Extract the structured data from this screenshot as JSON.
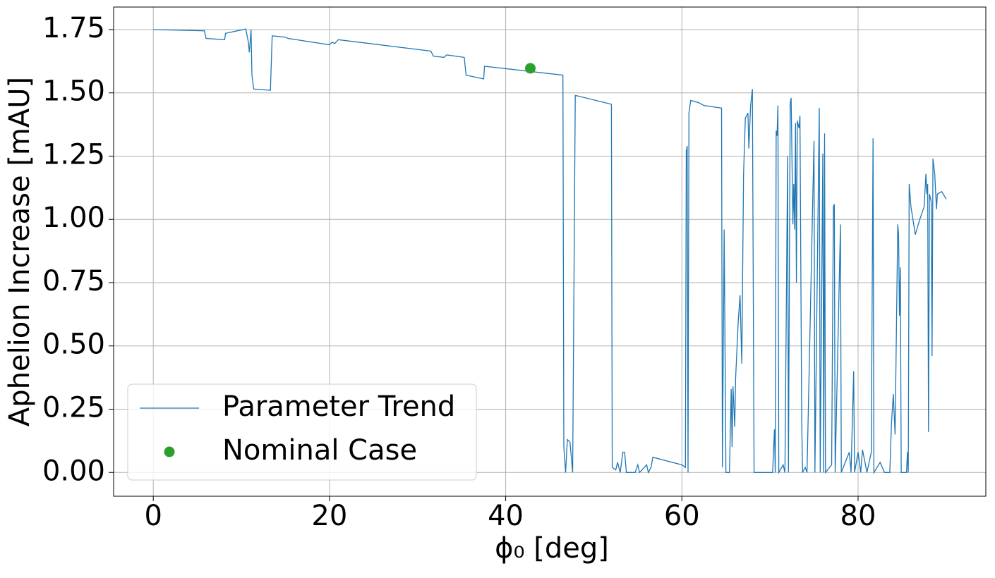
{
  "chart_data": {
    "type": "line",
    "xlabel": "ϕ₀ [deg]",
    "ylabel": "Aphelion Increase [mAU]",
    "xlim": [
      -4.5,
      94.5
    ],
    "ylim": [
      -0.094,
      1.839
    ],
    "xticks": [
      0,
      20,
      40,
      60,
      80
    ],
    "yticks": [
      {
        "value": 0,
        "label": "0.00"
      },
      0.25,
      {
        "value": 0.5,
        "label": "0.50"
      },
      0.75,
      {
        "value": 1,
        "label": "1.00"
      },
      1.25,
      {
        "value": 1.5,
        "label": "1.50"
      },
      1.75
    ],
    "grid": true,
    "legend": "lower left",
    "series": [
      {
        "name": "Parameter Trend",
        "color": "#1f77b4",
        "style": "line",
        "x": [
          0,
          5.8,
          6,
          8.1,
          8.2,
          10.5,
          10.8,
          10.9,
          11.1,
          11.2,
          11.4,
          13.3,
          13.5,
          15,
          15.3,
          20,
          20.3,
          20.6,
          21,
          31.5,
          31.8,
          33,
          33.3,
          35.3,
          35.5,
          37.5,
          37.6,
          46.5,
          46.6,
          46.8,
          47,
          47.3,
          47.6,
          47.9,
          52,
          52.1,
          52.5,
          52.7,
          53,
          53.3,
          53.5,
          53.7,
          54.7,
          55,
          55.2,
          56,
          56.2,
          56.5,
          56.7,
          60,
          60.4,
          60.5,
          60.6,
          60.7,
          60.8,
          61,
          62,
          62.5,
          64.5,
          64.6,
          64.8,
          65,
          65.4,
          65.6,
          65.7,
          65.8,
          66,
          66.1,
          66.4,
          66.6,
          66.8,
          67,
          67.2,
          67.5,
          67.6,
          67.8,
          68,
          68.2,
          70.3,
          70.5,
          70.6,
          70.7,
          70.8,
          70.9,
          71,
          71.5,
          71.7,
          72,
          72.1,
          72.3,
          72.4,
          72.6,
          72.7,
          72.8,
          72.9,
          73,
          73.1,
          73.3,
          73.4,
          73.6,
          73.7,
          74,
          74.2,
          75,
          75.1,
          75.6,
          75.7,
          76,
          76.1,
          76.2,
          76.3,
          77,
          77.2,
          77.3,
          77.4,
          78,
          78.1,
          79,
          79.2,
          79.5,
          79.6,
          80,
          80.3,
          80.5,
          81,
          81.5,
          81.7,
          81.8,
          82.5,
          83,
          83.6,
          83.8,
          84,
          84.2,
          84.5,
          84.6,
          84.7,
          84.8,
          84.9,
          85.5,
          85.6,
          85.7,
          85.8,
          86,
          86.5,
          87,
          87.5,
          87.7,
          87.8,
          87.9,
          88,
          88.1,
          88.3,
          88.4,
          88.5,
          88.7,
          88.9,
          89,
          89.5,
          90
        ],
        "values": [
          1.75,
          1.745,
          1.715,
          1.71,
          1.735,
          1.752,
          1.7,
          1.66,
          1.75,
          1.57,
          1.515,
          1.51,
          1.725,
          1.72,
          1.715,
          1.69,
          1.7,
          1.695,
          1.71,
          1.665,
          1.645,
          1.64,
          1.65,
          1.64,
          1.57,
          1.555,
          1.605,
          1.57,
          0.1,
          0,
          0.13,
          0.12,
          0,
          1.49,
          1.455,
          0.02,
          0.01,
          0.04,
          0,
          0.08,
          0.08,
          0,
          0,
          0.03,
          0,
          0.03,
          0,
          0.02,
          0.06,
          0.03,
          0.02,
          1.27,
          1.29,
          0,
          1.42,
          1.47,
          1.46,
          1.45,
          1.44,
          0.02,
          0.96,
          0,
          0,
          0.33,
          0.1,
          0.34,
          0.18,
          0.37,
          0.6,
          0.7,
          0.43,
          1.18,
          1.4,
          1.42,
          1.28,
          1.45,
          1.515,
          0,
          0,
          0.17,
          0,
          1.35,
          1.33,
          1.45,
          0,
          0.03,
          0,
          1.25,
          0,
          1.46,
          1.48,
          0.98,
          1.14,
          0.96,
          1.38,
          0.75,
          1.39,
          1.36,
          1.41,
          0.2,
          0,
          0.02,
          0,
          1.31,
          0,
          1.44,
          0,
          1.26,
          0,
          1.34,
          0,
          0.03,
          1.05,
          1.06,
          0,
          0.98,
          0,
          0.08,
          0,
          0.4,
          0,
          0.08,
          0,
          0.09,
          0,
          0.08,
          1.32,
          0,
          0.04,
          0,
          0,
          0.2,
          0.31,
          0.15,
          0.98,
          0.94,
          0.62,
          0.81,
          0,
          0,
          0.08,
          0,
          1.14,
          1.05,
          0.94,
          1,
          1.05,
          1.18,
          1.1,
          1.14,
          0.16,
          1.1,
          1.07,
          0.46,
          1.24,
          1.18,
          1.04,
          1.1,
          1.11,
          1.08
        ]
      },
      {
        "name": "Nominal Case",
        "color": "#2ca02c",
        "style": "marker",
        "x": [
          42.8
        ],
        "values": [
          1.597
        ]
      }
    ]
  }
}
